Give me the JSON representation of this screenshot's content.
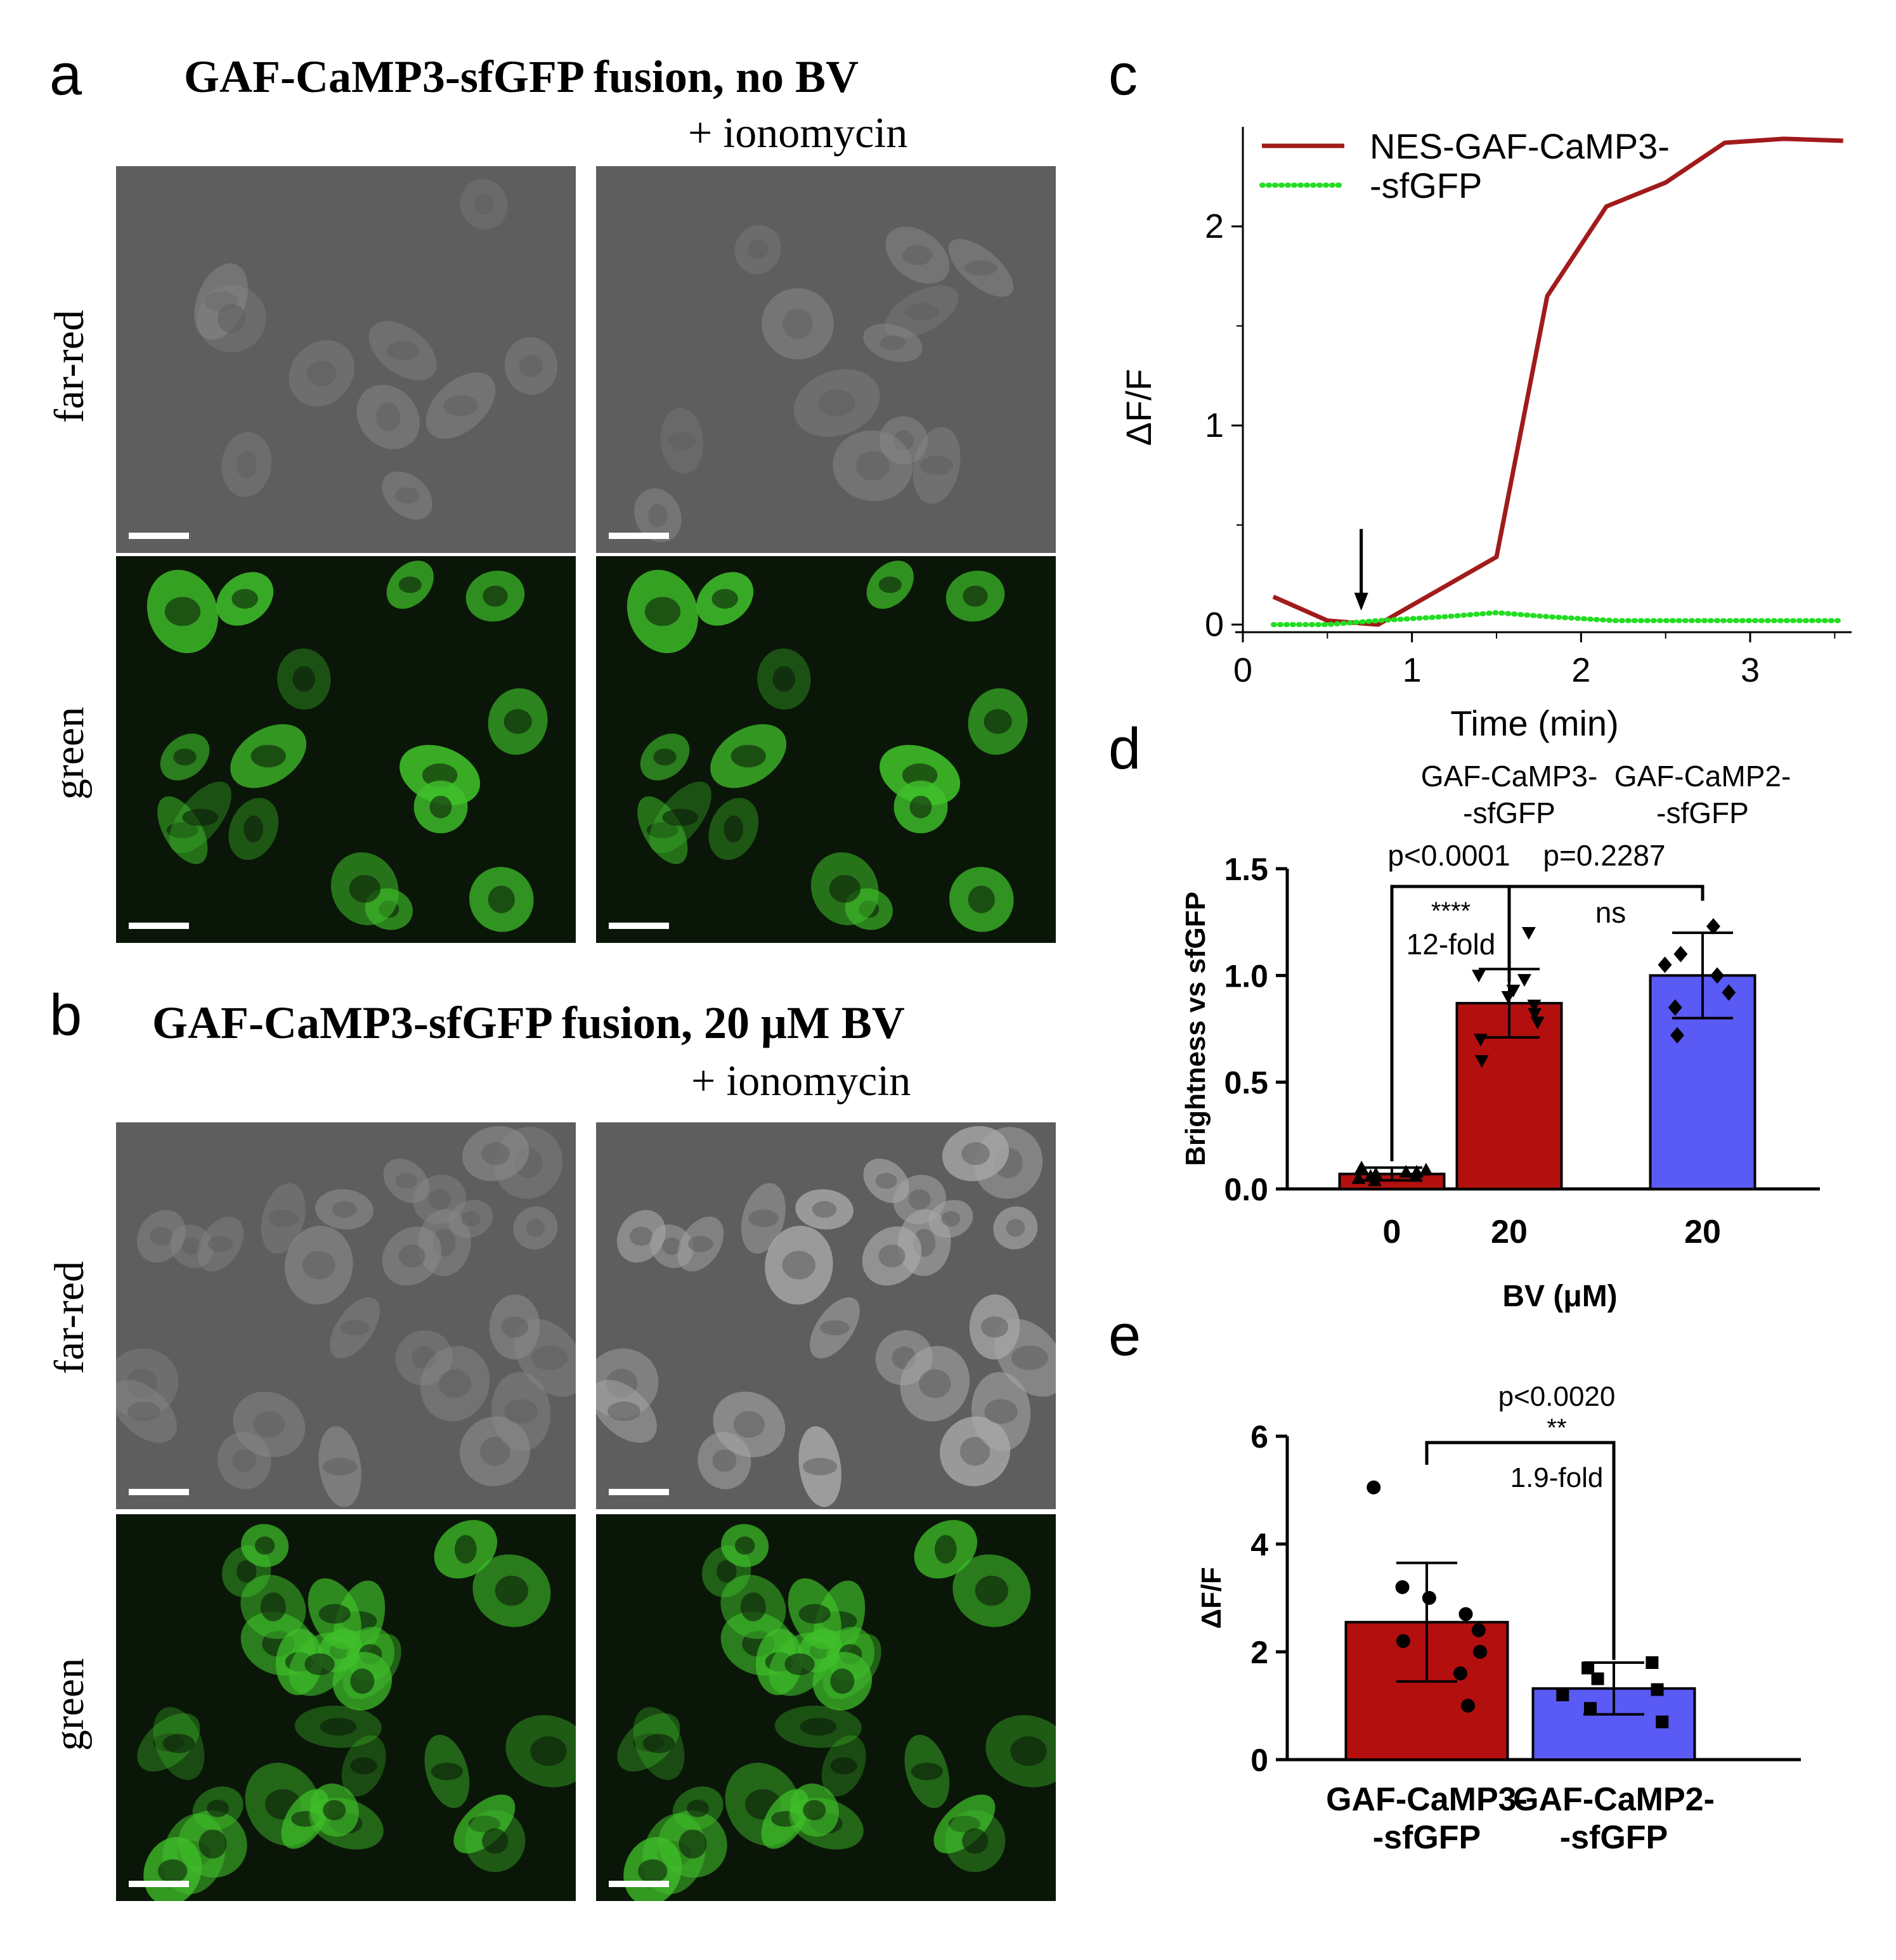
{
  "panel_a": {
    "letter": "a",
    "title": "GAF-CaMP3-sfGFP fusion, no BV",
    "subtitle": "+ ionomycin",
    "row_labels": [
      "far-red",
      "green"
    ]
  },
  "panel_b": {
    "letter": "b",
    "title": "GAF-CaMP3-sfGFP fusion, 20 μM BV",
    "subtitle": "+ ionomycin",
    "row_labels": [
      "far-red",
      "green"
    ]
  },
  "panel_c": {
    "letter": "c"
  },
  "panel_d": {
    "letter": "d"
  },
  "panel_e": {
    "letter": "e"
  },
  "colors": {
    "far_red_bg": "#5e5e5e",
    "green_bg": "#0a1608",
    "cell_green": "#3fbf2a",
    "scale_bar": "#ffffff",
    "dark_red": "#a11b1b",
    "bar_red": "#b40f0f",
    "bar_blue": "#5a5af5",
    "dotted_green": "#22dd22"
  },
  "chart_data": [
    {
      "id": "c",
      "type": "line",
      "xlabel": "Time (min)",
      "ylabel": "ΔF/F",
      "xlim": [
        0,
        3.6
      ],
      "ylim": [
        0,
        2.5
      ],
      "xticks": [
        "0",
        "1",
        "2",
        "3"
      ],
      "yticks": [
        "0",
        "1",
        "2"
      ],
      "annotation": "arrow at ~0.7 min",
      "arrow_x": 0.7,
      "legend": "top-left",
      "series": [
        {
          "name": "NES-GAF-CaMP3-\n-sfGFP",
          "legend_lines": [
            "NES-GAF-CaMP3-",
            "-sfGFP"
          ],
          "style": "solid",
          "color": "#a11b1b",
          "x": [
            0.18,
            0.5,
            0.8,
            1.5,
            1.8,
            2.15,
            2.5,
            2.85,
            3.2,
            3.55
          ],
          "y": [
            0.14,
            0.02,
            0.0,
            0.34,
            1.65,
            2.1,
            2.22,
            2.42,
            2.44,
            2.43
          ]
        },
        {
          "name": "",
          "style": "dotted",
          "color": "#22dd22",
          "x": [
            0.18,
            0.5,
            0.8,
            1.2,
            1.5,
            1.8,
            2.2,
            2.6,
            3.0,
            3.55
          ],
          "y": [
            0.0,
            0.0,
            0.02,
            0.04,
            0.06,
            0.04,
            0.02,
            0.02,
            0.02,
            0.02
          ]
        }
      ]
    },
    {
      "id": "d",
      "type": "bar",
      "xlabel": "BV (μM)",
      "ylabel": "Brightness vs sfGFP",
      "ylim": [
        0,
        1.5
      ],
      "yticks": [
        "0.0",
        "0.5",
        "1.0",
        "1.5"
      ],
      "group_labels": [
        "GAF-CaMP3-\n-sfGFP",
        "GAF-CaMP2-\n-sfGFP"
      ],
      "group_label_lines": [
        [
          "GAF-CaMP3-",
          "-sfGFP"
        ],
        [
          "GAF-CaMP2-",
          "-sfGFP"
        ]
      ],
      "categories": [
        "0",
        "20",
        "20"
      ],
      "values": [
        0.07,
        0.87,
        1.0
      ],
      "errors": [
        0.03,
        0.16,
        0.2
      ],
      "bar_colors": [
        "#b40f0f",
        "#b40f0f",
        "#5a5af5"
      ],
      "points": [
        [
          0.04,
          0.05,
          0.06,
          0.07,
          0.08,
          0.09,
          0.1,
          0.06,
          0.08
        ],
        [
          0.6,
          0.7,
          0.78,
          0.82,
          0.86,
          0.9,
          0.93,
          0.98,
          1.0,
          1.2
        ],
        [
          0.72,
          0.85,
          0.92,
          1.0,
          1.05,
          1.1,
          1.23
        ]
      ],
      "comparisons": [
        {
          "from": 0,
          "to": 1,
          "p": "p<0.0001",
          "stars": "****",
          "note": "12-fold"
        },
        {
          "from": 1,
          "to": 2,
          "p": "p=0.2287",
          "stars": "ns",
          "note": ""
        }
      ]
    },
    {
      "id": "e",
      "type": "bar",
      "xlabel": "",
      "ylabel": "ΔF/F",
      "ylim": [
        0,
        6
      ],
      "yticks": [
        "0",
        "2",
        "4",
        "6"
      ],
      "categories": [
        "GAF-CaMP3-\n-sfGFP",
        "GAF-CaMP2-\n-sfGFP"
      ],
      "category_lines": [
        [
          "GAF-CaMP3-",
          "-sfGFP"
        ],
        [
          "GAF-CaMP2-",
          "-sfGFP"
        ]
      ],
      "values": [
        2.55,
        1.32
      ],
      "errors": [
        1.1,
        0.48
      ],
      "bar_colors": [
        "#b40f0f",
        "#5a5af5"
      ],
      "points": [
        [
          1.0,
          1.6,
          2.0,
          2.2,
          2.4,
          2.7,
          3.0,
          3.2,
          5.05
        ],
        [
          0.7,
          0.95,
          1.2,
          1.3,
          1.5,
          1.7,
          1.8
        ]
      ],
      "comparison": {
        "from": 0,
        "to": 1,
        "p": "p<0.0020",
        "stars": "**",
        "note": "1.9-fold"
      }
    }
  ]
}
